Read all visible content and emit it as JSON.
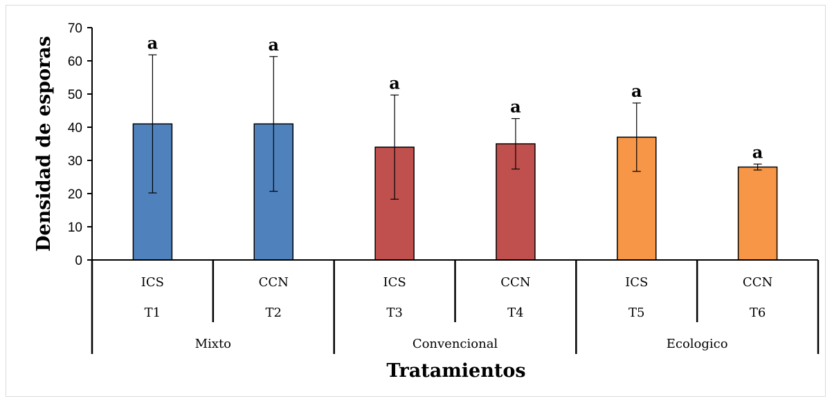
{
  "chart_data": {
    "type": "bar",
    "xlabel": "Tratamientos",
    "ylabel": "Densidad de esporas",
    "ylim": [
      0,
      70
    ],
    "yticks": [
      0,
      10,
      20,
      30,
      40,
      50,
      60,
      70
    ],
    "grid": false,
    "legend": "none",
    "categories": [
      {
        "label": "ICS",
        "treatment": "T1",
        "group": "Mixto"
      },
      {
        "label": "CCN",
        "treatment": "T2",
        "group": "Mixto"
      },
      {
        "label": "ICS",
        "treatment": "T3",
        "group": "Convencional"
      },
      {
        "label": "CCN",
        "treatment": "T4",
        "group": "Convencional"
      },
      {
        "label": "ICS",
        "treatment": "T5",
        "group": "Ecologico"
      },
      {
        "label": "CCN",
        "treatment": "T6",
        "group": "Ecologico"
      }
    ],
    "groups": [
      "Mixto",
      "Convencional",
      "Ecologico"
    ],
    "values": [
      41,
      41,
      34,
      35,
      37,
      28
    ],
    "errors": [
      20.8,
      20.3,
      15.7,
      7.6,
      10.3,
      0.9
    ],
    "significance": [
      "a",
      "a",
      "a",
      "a",
      "a",
      "a"
    ],
    "colors": [
      "#4f81bd",
      "#4f81bd",
      "#c0504d",
      "#c0504d",
      "#f79646",
      "#f79646"
    ]
  }
}
